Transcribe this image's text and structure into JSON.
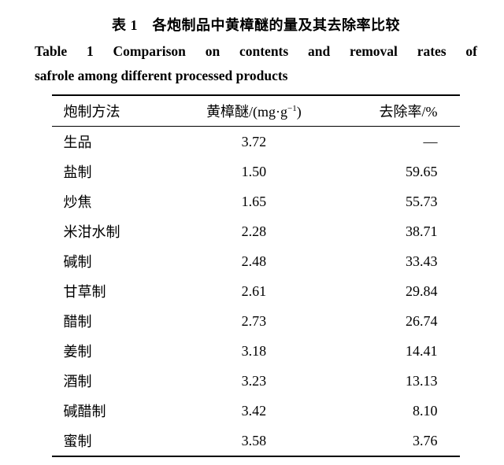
{
  "title_cn": "表 1　各炮制品中黄樟醚的量及其去除率比较",
  "title_en_line1": "Table 1  Comparison on contents and removal rates of",
  "title_en_line2": "safrole among different processed products",
  "table": {
    "headers": {
      "method": "炮制方法",
      "value_html": "黄樟醚/(mg·g",
      "value_sup": "−1",
      "value_tail": ")",
      "rate": "去除率/%"
    },
    "rows": [
      {
        "method": "生品",
        "value": "3.72",
        "rate": "—"
      },
      {
        "method": "盐制",
        "value": "1.50",
        "rate": "59.65"
      },
      {
        "method": "炒焦",
        "value": "1.65",
        "rate": "55.73"
      },
      {
        "method": "米泔水制",
        "value": "2.28",
        "rate": "38.71"
      },
      {
        "method": "碱制",
        "value": "2.48",
        "rate": "33.43"
      },
      {
        "method": "甘草制",
        "value": "2.61",
        "rate": "29.84"
      },
      {
        "method": "醋制",
        "value": "2.73",
        "rate": "26.74"
      },
      {
        "method": "姜制",
        "value": "3.18",
        "rate": "14.41"
      },
      {
        "method": "酒制",
        "value": "3.23",
        "rate": "13.13"
      },
      {
        "method": "碱醋制",
        "value": "3.42",
        "rate": "8.10"
      },
      {
        "method": "蜜制",
        "value": "3.58",
        "rate": "3.76"
      }
    ]
  }
}
